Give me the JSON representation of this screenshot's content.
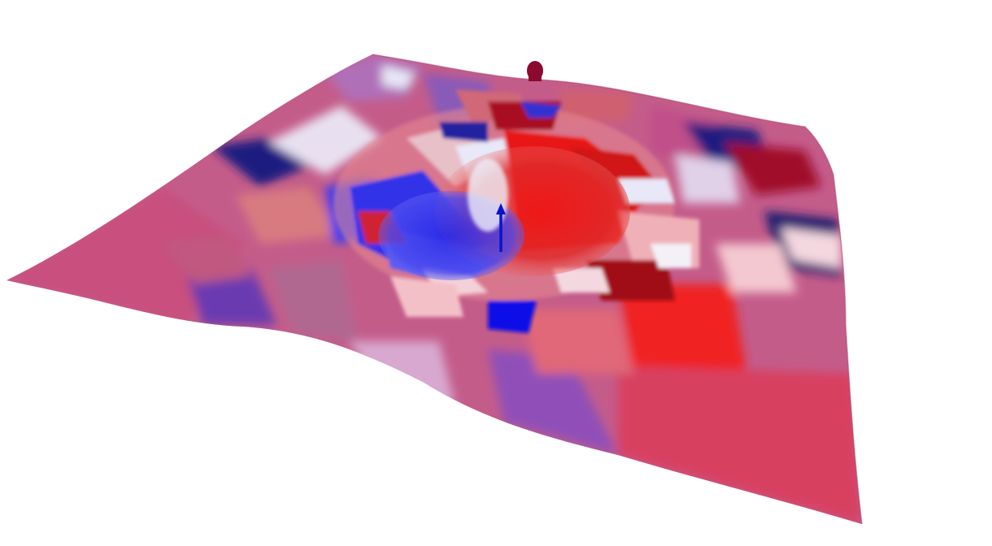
{
  "scene": {
    "background": "#ffffff",
    "colormap": [
      "#1a1aa8",
      "#3c3cf0",
      "#8080f0",
      "#e6e6f8",
      "#f2a0a0",
      "#f01818",
      "#8c0010"
    ],
    "surface_base_color": "#c25a8a",
    "vector_color": "#0a14c8",
    "marker_color": "#8c0a2e"
  }
}
